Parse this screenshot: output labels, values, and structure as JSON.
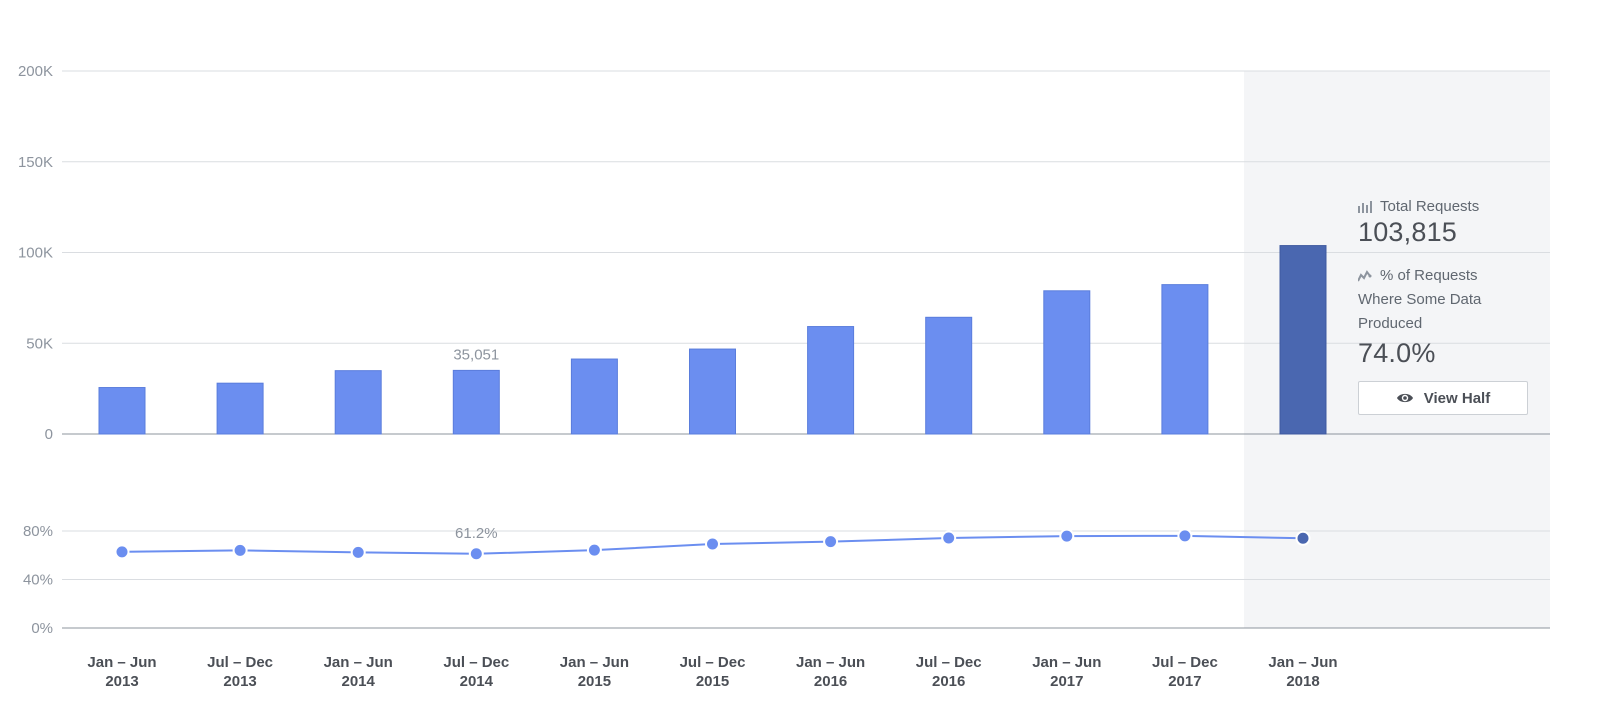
{
  "chart_data": [
    {
      "type": "bar",
      "categories": [
        [
          "Jan – Jun",
          "2013"
        ],
        [
          "Jul – Dec",
          "2013"
        ],
        [
          "Jan – Jun",
          "2014"
        ],
        [
          "Jul – Dec",
          "2014"
        ],
        [
          "Jan – Jun",
          "2015"
        ],
        [
          "Jul – Dec",
          "2015"
        ],
        [
          "Jan – Jun",
          "2016"
        ],
        [
          "Jul – Dec",
          "2016"
        ],
        [
          "Jan – Jun",
          "2017"
        ],
        [
          "Jul – Dec",
          "2017"
        ],
        [
          "Jan – Jun",
          "2018"
        ]
      ],
      "values": [
        25600,
        28000,
        34900,
        35051,
        41300,
        46800,
        59200,
        64300,
        78900,
        82300,
        103815
      ],
      "ylim": [
        0,
        200000
      ],
      "yticks": [
        {
          "value": 0,
          "label": "0"
        },
        {
          "value": 50000,
          "label": "50K"
        },
        {
          "value": 100000,
          "label": "100K"
        },
        {
          "value": 150000,
          "label": "150K"
        },
        {
          "value": 200000,
          "label": "200K"
        }
      ],
      "data_labels": [
        {
          "index": 3,
          "text": "35,051"
        }
      ],
      "grid": true,
      "highlight_index": 10
    },
    {
      "type": "line",
      "values": [
        62.8,
        64.0,
        62.4,
        61.2,
        64.2,
        69.3,
        71.2,
        74.2,
        75.8,
        76.0,
        74.0
      ],
      "ylim": [
        0,
        100
      ],
      "yticks": [
        {
          "value": 0,
          "label": "0%"
        },
        {
          "value": 40,
          "label": "40%"
        },
        {
          "value": 80,
          "label": "80%"
        }
      ],
      "data_labels": [
        {
          "index": 3,
          "text": "61.2%"
        }
      ],
      "grid": true,
      "highlight_index": 10
    }
  ],
  "colors": {
    "bar": "#6b8ef0",
    "bar_selected": "#4a67b0",
    "line": "#6b8ef0",
    "highlight_band": "#f4f5f7",
    "grid": "#dadde1",
    "axis": "#8d949e"
  },
  "panel": {
    "total_icon": "bar-chart-icon",
    "total_label": "Total Requests",
    "total_value": "103,815",
    "pct_icon": "trend-line-icon",
    "pct_label_line1": "% of Requests",
    "pct_label_line2": "Where Some Data",
    "pct_label_line3": "Produced",
    "pct_value": "74.0%",
    "button_icon": "eye-icon",
    "button_label": "View Half"
  }
}
